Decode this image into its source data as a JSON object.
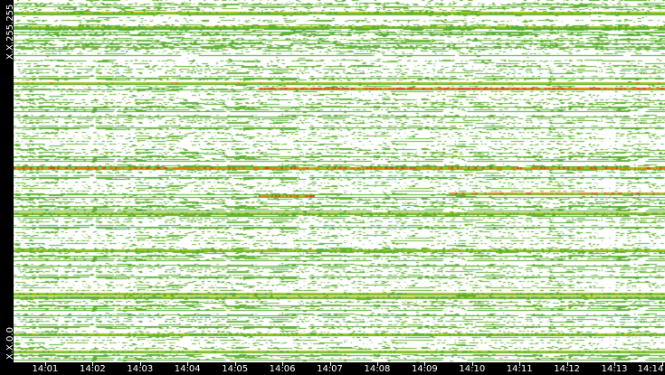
{
  "chart_data": {
    "type": "heatmap",
    "title": "",
    "xlabel": "",
    "ylabel": "",
    "y_tick_labels": [
      "X.X.255.255",
      "X.X.0.0"
    ],
    "x_tick_labels": [
      "14:01",
      "14:02",
      "14:03",
      "14:04",
      "14:05",
      "14:06",
      "14:07",
      "14:08",
      "14:09",
      "14:10",
      "14:11",
      "14:12",
      "14:13",
      "14:14"
    ],
    "x_range": [
      "14:00:20",
      "14:14:04"
    ],
    "y_range": [
      "X.X.0.0",
      "X.X.255.255"
    ],
    "colors": {
      "low": "#5ab032",
      "mid": "#a4c418",
      "high": "#f07800",
      "peak": "#e83a14",
      "background": "#ffffff",
      "axis_bg": "#000000",
      "axis_text": "#ffffff"
    },
    "hot_rows": [
      {
        "y": 0.032,
        "intensity": 0.6,
        "x_start": "14:00:20",
        "x_end": "14:14:04"
      },
      {
        "y": 0.073,
        "intensity": 0.55,
        "x_start": "14:00:20",
        "x_end": "14:14:04"
      },
      {
        "y": 0.226,
        "intensity": 0.7,
        "x_start": "14:00:20",
        "x_end": "14:14:04"
      },
      {
        "y": 0.243,
        "intensity": 0.95,
        "x_start": "14:05:30",
        "x_end": "14:14:04"
      },
      {
        "y": 0.461,
        "intensity": 0.85,
        "x_start": "14:00:20",
        "x_end": "14:14:04"
      },
      {
        "y": 0.539,
        "intensity": 0.9,
        "x_start": "14:05:30",
        "x_end": "14:06:40"
      },
      {
        "y": 0.531,
        "intensity": 0.85,
        "x_start": "14:09:30",
        "x_end": "14:14:04"
      },
      {
        "y": 0.586,
        "intensity": 0.6,
        "x_start": "14:00:20",
        "x_end": "14:14:04"
      },
      {
        "y": 0.688,
        "intensity": 0.6,
        "x_start": "14:00:20",
        "x_end": "14:14:04"
      },
      {
        "y": 0.808,
        "intensity": 0.6,
        "x_start": "14:00:20",
        "x_end": "14:14:04"
      },
      {
        "y": 0.818,
        "intensity": 0.55,
        "x_start": "14:00:20",
        "x_end": "14:14:04"
      },
      {
        "y": 0.92,
        "intensity": 0.55,
        "x_start": "14:00:20",
        "x_end": "14:14:04"
      },
      {
        "y": 0.968,
        "intensity": 0.6,
        "x_start": "14:00:20",
        "x_end": "14:14:04"
      }
    ],
    "grid": false,
    "legend": "none"
  }
}
